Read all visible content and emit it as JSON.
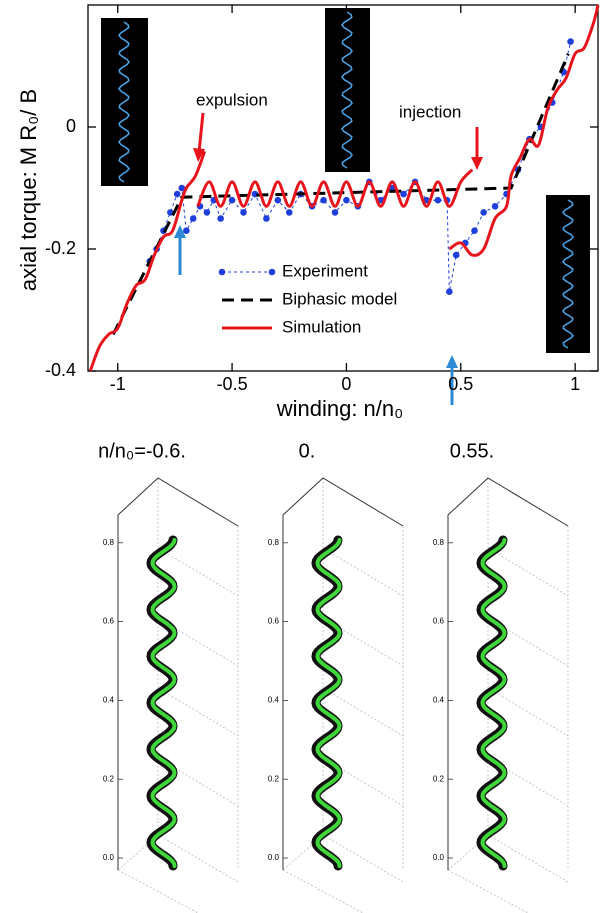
{
  "chart_data": {
    "type": "line",
    "x_label": "winding: n/n₀",
    "y_label": "axial torque: M R₀/ B",
    "xlim": [
      -1.13,
      1.1
    ],
    "ylim": [
      -0.4,
      0.2
    ],
    "xticks": [
      -1,
      -0.5,
      0,
      0.5,
      1
    ],
    "yticks": [
      -0.4,
      -0.2,
      0
    ],
    "annotations": [
      "expulsion",
      "injection"
    ],
    "series": [
      {
        "name": "Experiment",
        "color": "#1f3fdd",
        "line_style": "dotted",
        "marker": "circle",
        "x": [
          -0.86,
          -0.83,
          -0.8,
          -0.77,
          -0.74,
          -0.72,
          -0.7,
          -0.67,
          -0.64,
          -0.61,
          -0.58,
          -0.55,
          -0.5,
          -0.45,
          -0.4,
          -0.35,
          -0.3,
          -0.25,
          -0.2,
          -0.15,
          -0.1,
          -0.05,
          0,
          0.05,
          0.1,
          0.15,
          0.2,
          0.25,
          0.3,
          0.35,
          0.4,
          0.44,
          0.45,
          0.48,
          0.52,
          0.56,
          0.6,
          0.65,
          0.7,
          0.75,
          0.8,
          0.85,
          0.9,
          0.95,
          0.98
        ],
        "values": [
          -0.22,
          -0.2,
          -0.17,
          -0.14,
          -0.11,
          -0.1,
          -0.17,
          -0.15,
          -0.13,
          -0.14,
          -0.12,
          -0.15,
          -0.12,
          -0.14,
          -0.11,
          -0.15,
          -0.12,
          -0.14,
          -0.11,
          -0.13,
          -0.12,
          -0.14,
          -0.12,
          -0.13,
          -0.09,
          -0.12,
          -0.1,
          -0.11,
          -0.09,
          -0.12,
          -0.12,
          -0.12,
          -0.27,
          -0.21,
          -0.19,
          -0.17,
          -0.14,
          -0.13,
          -0.11,
          -0.07,
          -0.02,
          0,
          0.04,
          0.09,
          0.14
        ]
      },
      {
        "name": "Biphasic model",
        "color": "#000000",
        "line_style": "dashed",
        "x": [
          -1.02,
          -0.72,
          0.72,
          0.97
        ],
        "values": [
          -0.34,
          -0.115,
          -0.1,
          0.12
        ]
      },
      {
        "name": "Simulation",
        "color": "#e8141c",
        "line_style": "solid",
        "x": [
          -1.12,
          -1.08,
          -1.04,
          -1.0,
          -0.96,
          -0.92,
          -0.88,
          -0.84,
          -0.8,
          -0.76,
          -0.72,
          -0.7,
          -0.66,
          -0.62,
          null,
          -0.65,
          -0.6,
          -0.55,
          -0.5,
          -0.45,
          -0.4,
          -0.35,
          -0.3,
          -0.25,
          -0.2,
          -0.15,
          -0.1,
          -0.05,
          0,
          0.05,
          0.1,
          0.15,
          0.2,
          0.25,
          0.3,
          0.35,
          0.4,
          0.45,
          0.5,
          0.55,
          null,
          0.45,
          0.5,
          0.55,
          0.6,
          0.65,
          0.7,
          0.72,
          0.76,
          0.8,
          0.84,
          0.88,
          0.92,
          0.96,
          1.0,
          1.04,
          1.08,
          1.1
        ],
        "values": [
          -0.4,
          -0.36,
          -0.34,
          -0.33,
          -0.29,
          -0.26,
          -0.25,
          -0.21,
          -0.18,
          -0.17,
          -0.12,
          -0.1,
          -0.08,
          -0.04,
          null,
          -0.13,
          -0.09,
          -0.13,
          -0.09,
          -0.13,
          -0.09,
          -0.13,
          -0.09,
          -0.13,
          -0.09,
          -0.13,
          -0.09,
          -0.13,
          -0.09,
          -0.13,
          -0.09,
          -0.13,
          -0.09,
          -0.13,
          -0.09,
          -0.13,
          -0.09,
          -0.13,
          -0.09,
          -0.07,
          null,
          -0.2,
          -0.19,
          -0.21,
          -0.2,
          -0.15,
          -0.13,
          -0.08,
          -0.05,
          -0.02,
          -0.03,
          0.03,
          0.06,
          0.08,
          0.12,
          0.13,
          0.17,
          0.2
        ]
      }
    ]
  },
  "panels": [
    {
      "title": "n/n₀=-0.6.",
      "zticks": [
        {
          "value": 0,
          "label": "0.0"
        },
        0.2,
        0.4,
        0.6,
        0.8
      ]
    },
    {
      "title": "0.",
      "zticks": [
        {
          "value": 0,
          "label": "0.0"
        },
        0.2,
        0.4,
        0.6,
        0.8
      ]
    },
    {
      "title": "0.55.",
      "zticks": [
        {
          "value": 0,
          "label": "0.0"
        },
        0.2,
        0.4,
        0.6,
        0.8
      ]
    }
  ]
}
